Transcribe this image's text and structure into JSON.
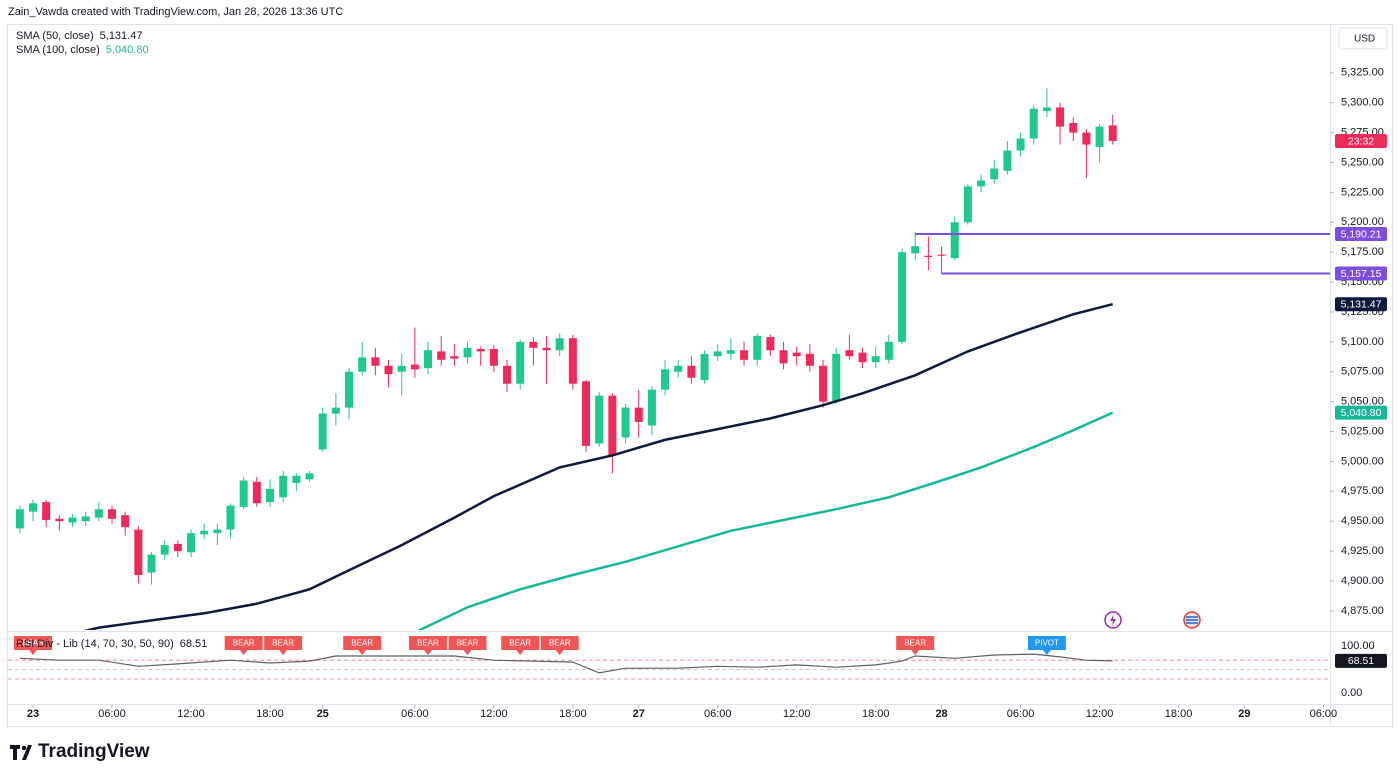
{
  "header": "Zain_Vawda created with TradingView.com, Jan 28, 2026 13:36 UTC",
  "currency": "USD",
  "brand": "TradingView",
  "chart_data": {
    "type": "candlestick",
    "up_color": "#1fc98b",
    "down_color": "#ee2a5a",
    "grid": false,
    "xlim": [
      -0.9,
      99.5
    ],
    "xticks": [
      {
        "value": 1,
        "label": "23"
      },
      {
        "value": 7,
        "label": "06:00"
      },
      {
        "value": 13,
        "label": "12:00"
      },
      {
        "value": 19,
        "label": "18:00"
      },
      {
        "value": 23,
        "label": "25"
      },
      {
        "value": 30,
        "label": "06:00"
      },
      {
        "value": 36,
        "label": "12:00"
      },
      {
        "value": 42,
        "label": "18:00"
      },
      {
        "value": 47,
        "label": "27"
      },
      {
        "value": 53,
        "label": "06:00"
      },
      {
        "value": 59,
        "label": "12:00"
      },
      {
        "value": 65,
        "label": "18:00"
      },
      {
        "value": 70,
        "label": "28"
      },
      {
        "value": 76,
        "label": "06:00"
      },
      {
        "value": 82,
        "label": "12:00"
      },
      {
        "value": 88,
        "label": "18:00"
      },
      {
        "value": 93,
        "label": "29"
      },
      {
        "value": 99,
        "label": "06:00"
      }
    ],
    "ylim": [
      4859,
      5365
    ],
    "yticks": [
      {
        "value": 4875,
        "label": "4,875.00"
      },
      {
        "value": 4900,
        "label": "4,900.00"
      },
      {
        "value": 4925,
        "label": "4,925.00"
      },
      {
        "value": 4950,
        "label": "4,950.00"
      },
      {
        "value": 4975,
        "label": "4,975.00"
      },
      {
        "value": 5000,
        "label": "5,000.00"
      },
      {
        "value": 5025,
        "label": "5,025.00"
      },
      {
        "value": 5050,
        "label": "5,050.00"
      },
      {
        "value": 5075,
        "label": "5,075.00"
      },
      {
        "value": 5100,
        "label": "5,100.00"
      },
      {
        "value": 5125,
        "label": "5,125.00"
      },
      {
        "value": 5150,
        "label": "5,150.00"
      },
      {
        "value": 5175,
        "label": "5,175.00"
      },
      {
        "value": 5200,
        "label": "5,200.00"
      },
      {
        "value": 5225,
        "label": "5,225.00"
      },
      {
        "value": 5250,
        "label": "5,250.00"
      },
      {
        "value": 5275,
        "label": "5,275.00"
      },
      {
        "value": 5300,
        "label": "5,300.00"
      },
      {
        "value": 5325,
        "label": "5,325.00"
      }
    ],
    "candles": {
      "open": [
        4944,
        4958,
        4966,
        4952,
        4949,
        4950,
        4953,
        4960,
        4955,
        4943,
        4907,
        4922,
        4931,
        4924,
        4939,
        4940,
        4943,
        4962,
        4983,
        4966,
        4970,
        4982,
        4985,
        5010,
        5040,
        5045,
        5075,
        5087,
        5080,
        5075,
        5081,
        5078,
        5092,
        5088,
        5087,
        5094,
        5094,
        5080,
        5065,
        5100,
        5095,
        5093,
        5103,
        5067,
        5015,
        5055,
        5020,
        5045,
        5030,
        5060,
        5075,
        5080,
        5068,
        5088,
        5090,
        5093,
        5085,
        5104,
        5093,
        5091,
        5090,
        5080,
        5050,
        5093,
        5091,
        5083,
        5085,
        5100,
        5174,
        5172,
        5173,
        5170,
        5200,
        5230,
        5236,
        5243,
        5260,
        5270,
        5293,
        5296,
        5283,
        5275,
        5263,
        5281
      ],
      "high": [
        4963,
        4968,
        4968,
        4955,
        4956,
        4958,
        4966,
        4963,
        4958,
        4946,
        4924,
        4934,
        4934,
        4943,
        4948,
        4948,
        4965,
        4987,
        4987,
        4985,
        4992,
        4990,
        4992,
        5045,
        5057,
        5078,
        5100,
        5095,
        5085,
        5090,
        5112,
        5100,
        5105,
        5098,
        5100,
        5096,
        5097,
        5085,
        5102,
        5104,
        5105,
        5107,
        5106,
        5068,
        5058,
        5057,
        5048,
        5060,
        5063,
        5085,
        5085,
        5088,
        5093,
        5098,
        5103,
        5100,
        5107,
        5106,
        5100,
        5096,
        5098,
        5085,
        5095,
        5106,
        5095,
        5096,
        5106,
        5178,
        5192,
        5188,
        5180,
        5205,
        5232,
        5240,
        5252,
        5268,
        5275,
        5298,
        5312,
        5300,
        5288,
        5278,
        5282,
        5290
      ],
      "low": [
        4940,
        4950,
        4945,
        4942,
        4945,
        4946,
        4950,
        4948,
        4938,
        4898,
        4897,
        4918,
        4920,
        4920,
        4935,
        4930,
        4936,
        4960,
        4962,
        4962,
        4966,
        4975,
        4983,
        5008,
        5030,
        5035,
        5072,
        5072,
        5062,
        5055,
        5070,
        5073,
        5080,
        5080,
        5082,
        5080,
        5075,
        5058,
        5060,
        5080,
        5065,
        5088,
        5060,
        5008,
        5012,
        4990,
        5015,
        5020,
        5022,
        5055,
        5070,
        5065,
        5065,
        5084,
        5085,
        5080,
        5080,
        5088,
        5077,
        5080,
        5075,
        5045,
        5048,
        5085,
        5078,
        5078,
        5082,
        5098,
        5168,
        5160,
        5157,
        5168,
        5198,
        5225,
        5232,
        5240,
        5255,
        5265,
        5288,
        5265,
        5268,
        5237,
        5250,
        5265
      ],
      "close": [
        4960,
        4965,
        4951,
        4950,
        4953,
        4954,
        4960,
        4952,
        4945,
        4905,
        4922,
        4930,
        4925,
        4940,
        4942,
        4943,
        4963,
        4984,
        4965,
        4977,
        4988,
        4988,
        4990,
        5040,
        5045,
        5075,
        5087,
        5080,
        5073,
        5080,
        5077,
        5093,
        5085,
        5086,
        5095,
        5092,
        5080,
        5065,
        5100,
        5095,
        5093,
        5103,
        5065,
        5013,
        5055,
        5005,
        5045,
        5033,
        5060,
        5077,
        5080,
        5070,
        5090,
        5092,
        5093,
        5085,
        5105,
        5093,
        5082,
        5088,
        5080,
        5050,
        5090,
        5088,
        5083,
        5088,
        5100,
        5175,
        5180,
        5171,
        5172,
        5200,
        5230,
        5235,
        5245,
        5260,
        5270,
        5295,
        5296,
        5280,
        5275,
        5265,
        5280,
        5268
      ]
    },
    "countdown": "23:32",
    "series": [
      {
        "name": "SMA (50, close)",
        "color": "#0c1a3d",
        "last_label": "5,131.47",
        "x": [
          3,
          6,
          10,
          14,
          18,
          22,
          25,
          29,
          33,
          36,
          41,
          45,
          49,
          53,
          57,
          61,
          64,
          68,
          72,
          76,
          80,
          83
        ],
        "values": [
          4853,
          4861,
          4867,
          4873,
          4881,
          4893,
          4909,
          4930,
          4953,
          4971,
          4995,
          5005,
          5018,
          5027,
          5036,
          5047,
          5057,
          5072,
          5092,
          5108,
          5123,
          5131.47
        ]
      },
      {
        "name": "SMA (100, close)",
        "color": "#17b79a",
        "last_label": "5,040.80",
        "x": [
          30,
          34,
          38,
          42,
          46,
          50,
          54,
          58,
          62,
          66,
          70,
          73,
          77,
          80,
          83
        ],
        "values": [
          4857,
          4878,
          4893,
          4905,
          4916,
          4929,
          4942,
          4951,
          4960,
          4970,
          4984,
          4995,
          5012,
          5026,
          5040.8
        ]
      }
    ],
    "hlines": [
      {
        "value": 5190.21,
        "label": "5,190.21",
        "start": 68,
        "color": "#7c4ddf"
      },
      {
        "value": 5157.15,
        "label": "5,157.15",
        "start": 70,
        "color": "#7c4ddf"
      }
    ],
    "rsi": {
      "name": "RSI Div - Lib (14, 70, 30, 50, 90)",
      "last_label": "68.51",
      "ylim": [
        -19,
        130
      ],
      "yticks": [
        {
          "value": 0,
          "label": "0.00"
        },
        {
          "value": 100,
          "label": "100.00"
        }
      ],
      "levels": [
        70,
        50,
        30
      ],
      "x": [
        0,
        3,
        6,
        9,
        12,
        16,
        19,
        22,
        24,
        27,
        30,
        33,
        36,
        39,
        42,
        44,
        46,
        50,
        53,
        56,
        59,
        62,
        65,
        67,
        68,
        71,
        74,
        77,
        79,
        81,
        83
      ],
      "values": [
        74,
        70,
        70,
        57,
        62,
        70,
        64,
        68,
        79,
        79,
        79,
        79,
        70,
        68,
        66,
        43,
        53,
        53,
        57,
        55,
        60,
        55,
        60,
        68,
        79,
        74,
        81,
        83,
        77,
        70,
        68.51
      ],
      "signals": [
        {
          "index": 1,
          "label": "BEAR"
        },
        {
          "index": 17,
          "label": "BEAR"
        },
        {
          "index": 20,
          "label": "BEAR"
        },
        {
          "index": 26,
          "label": "BEAR"
        },
        {
          "index": 31,
          "label": "BEAR"
        },
        {
          "index": 34,
          "label": "BEAR"
        },
        {
          "index": 38,
          "label": "BEAR"
        },
        {
          "index": 41,
          "label": "BEAR"
        },
        {
          "index": 68,
          "label": "BEAR"
        },
        {
          "index": 78,
          "label": "PIVOT"
        }
      ]
    }
  }
}
